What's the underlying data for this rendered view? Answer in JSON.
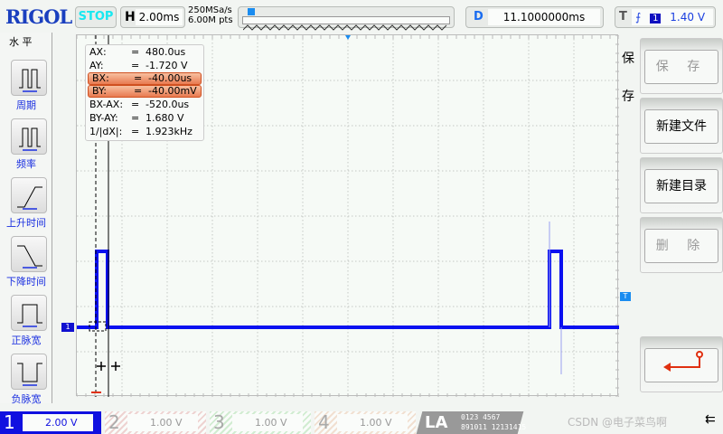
{
  "brand": "RIGOL",
  "run_state": "STOP",
  "horizontal": {
    "label": "H",
    "timebase": "2.00ms",
    "sample_rate": "250MSa/s",
    "memory_depth": "6.00M pts"
  },
  "delay": {
    "label": "D",
    "value": "11.1000000ms"
  },
  "trigger": {
    "label": "T",
    "edge": "rising",
    "source": "1",
    "level": "1.40 V"
  },
  "left_menu": {
    "title": "水 平",
    "items": [
      {
        "label": "周期",
        "icon": "period-icon"
      },
      {
        "label": "频率",
        "icon": "frequency-icon"
      },
      {
        "label": "上升时间",
        "icon": "rise-time-icon"
      },
      {
        "label": "下降时间",
        "icon": "fall-time-icon"
      },
      {
        "label": "正脉宽",
        "icon": "positive-width-icon"
      },
      {
        "label": "负脉宽",
        "icon": "negative-width-icon"
      }
    ]
  },
  "measurements": [
    {
      "name": "AX:",
      "eq": "=",
      "value": "480.0us",
      "highlight": false
    },
    {
      "name": "AY:",
      "eq": "=",
      "value": "-1.720 V",
      "highlight": false
    },
    {
      "name": "BX:",
      "eq": "=",
      "value": "-40.00us",
      "highlight": true
    },
    {
      "name": "BY:",
      "eq": "=",
      "value": "-40.00mV",
      "highlight": true
    },
    {
      "name": "BX-AX:",
      "eq": "=",
      "value": "-520.0us",
      "highlight": false
    },
    {
      "name": "BY-AY:",
      "eq": "=",
      "value": "1.680 V",
      "highlight": false
    },
    {
      "name": "1/|dX|:",
      "eq": "=",
      "value": "1.923kHz",
      "highlight": false
    }
  ],
  "right_menu": {
    "title": "保存",
    "buttons": [
      {
        "label": "保 存",
        "enabled": false
      },
      {
        "label": "新建文件",
        "enabled": true
      },
      {
        "label": "新建目录",
        "enabled": true
      },
      {
        "label": "删 除",
        "enabled": false
      }
    ],
    "back_icon": "return-arrow-icon"
  },
  "channels": [
    {
      "num": "1",
      "scale": "2.00 V",
      "color": "#1010e0",
      "active": true
    },
    {
      "num": "2",
      "scale": "1.00 V",
      "color": "#e8a0a0",
      "active": false
    },
    {
      "num": "3",
      "scale": "1.00 V",
      "color": "#a0e0a0",
      "active": false
    },
    {
      "num": "4",
      "scale": "1.00 V",
      "color": "#f0c0a0",
      "active": false
    }
  ],
  "la": {
    "label": "LA",
    "bits_row1": "0123 4567",
    "bits_row2": "891011 12131415"
  },
  "watermark": "CSDN @电子菜鸟啊",
  "trace_color": "#0a10f0"
}
